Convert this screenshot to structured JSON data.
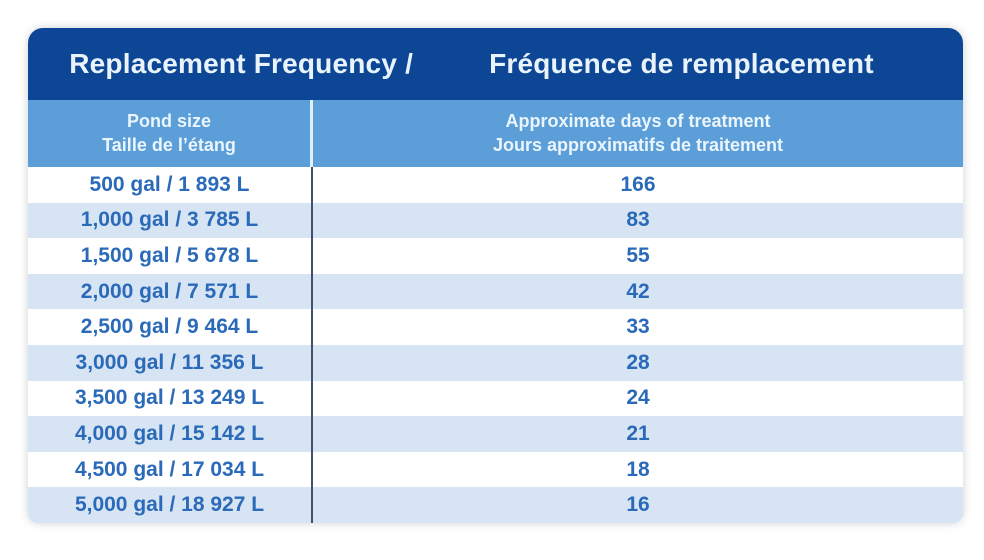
{
  "table": {
    "title_en": "Replacement Frequency /",
    "title_fr": "Fréquence de remplacement",
    "col1_header_en": "Pond size",
    "col1_header_fr": "Taille de l’étang",
    "col2_header_en": "Approximate days of treatment",
    "col2_header_fr": "Jours approximatifs de traitement",
    "rows": [
      {
        "size": "500 gal / 1 893 L",
        "days": "166"
      },
      {
        "size": "1,000 gal / 3 785 L",
        "days": "83"
      },
      {
        "size": "1,500 gal / 5 678 L",
        "days": "55"
      },
      {
        "size": "2,000 gal / 7 571 L",
        "days": "42"
      },
      {
        "size": "2,500 gal / 9 464 L",
        "days": "33"
      },
      {
        "size": "3,000 gal / 11 356 L",
        "days": "28"
      },
      {
        "size": "3,500 gal / 13 249 L",
        "days": "24"
      },
      {
        "size": "4,000 gal / 15 142 L",
        "days": "21"
      },
      {
        "size": "4,500 gal / 17 034 L",
        "days": "18"
      },
      {
        "size": "5,000 gal / 18 927 L",
        "days": "16"
      }
    ]
  },
  "chart_data": {
    "type": "table",
    "title": "Replacement Frequency / Fréquence de remplacement",
    "columns": [
      "Pond size / Taille de l’étang",
      "Approximate days of treatment / Jours approximatifs de traitement"
    ],
    "categories": [
      "500 gal / 1 893 L",
      "1,000 gal / 3 785 L",
      "1,500 gal / 5 678 L",
      "2,000 gal / 7 571 L",
      "2,500 gal / 9 464 L",
      "3,000 gal / 11 356 L",
      "3,500 gal / 13 249 L",
      "4,000 gal / 15 142 L",
      "4,500 gal / 17 034 L",
      "5,000 gal / 18 927 L"
    ],
    "values": [
      166,
      83,
      55,
      42,
      33,
      28,
      24,
      21,
      18,
      16
    ]
  },
  "colors": {
    "header_bg": "#0d4695",
    "header_fg": "#e9f3fc",
    "subheader_bg": "#5c9ed7",
    "subheader_fg": "#eaf5fe",
    "stripe_bg": "#d7e4f4",
    "row_fg": "#2a6ab9",
    "divider_dark": "#44506a",
    "divider_light": "#dff0fb"
  }
}
